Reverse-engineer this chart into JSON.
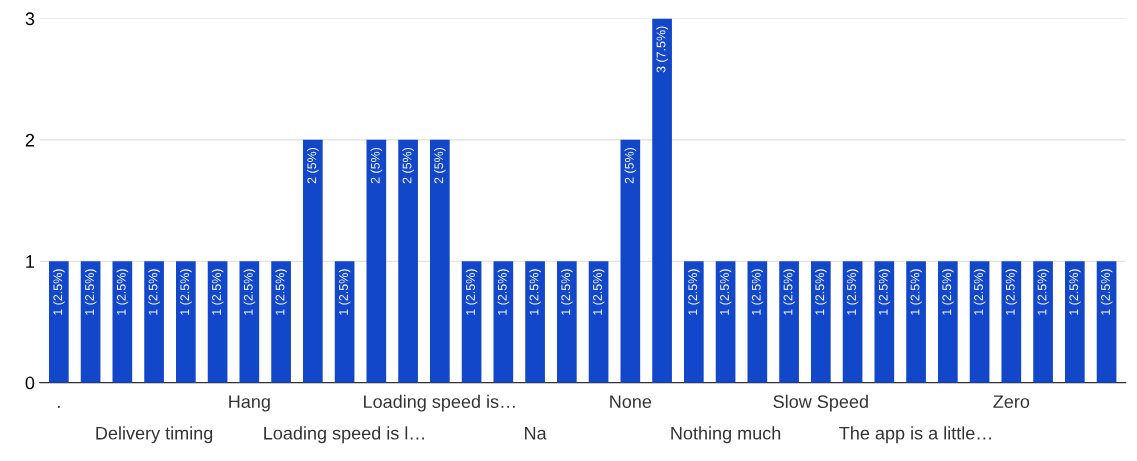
{
  "chart_data": {
    "type": "bar",
    "categories": [
      ".",
      null,
      null,
      "Delivery timing",
      null,
      null,
      "Hang",
      null,
      null,
      "Loading speed is l…",
      null,
      null,
      "Loading speed is…",
      null,
      null,
      "Na",
      null,
      null,
      "None",
      null,
      null,
      "Nothing much",
      null,
      null,
      "Slow Speed",
      null,
      null,
      "The app is a little…",
      null,
      null,
      "Zero",
      null,
      null,
      null
    ],
    "values": [
      1,
      1,
      1,
      1,
      1,
      1,
      1,
      1,
      2,
      1,
      2,
      2,
      2,
      1,
      1,
      1,
      1,
      1,
      2,
      3,
      1,
      1,
      1,
      1,
      1,
      1,
      1,
      1,
      1,
      1,
      1,
      1,
      1,
      1
    ],
    "value_labels": [
      "1 (2.5%)",
      "1 (2.5%)",
      "1 (2.5%)",
      "1 (2.5%)",
      "1 (2.5%)",
      "1 (2.5%)",
      "1 (2.5%)",
      "1 (2.5%)",
      "2 (5%)",
      "1 (2.5%)",
      "2 (5%)",
      "2 (5%)",
      "2 (5%)",
      "1 (2.5%)",
      "1 (2.5%)",
      "1 (2.5%)",
      "1 (2.5%)",
      "1 (2.5%)",
      "2 (5%)",
      "3 (7.5%)",
      "1 (2.5%)",
      "1 (2.5%)",
      "1 (2.5%)",
      "1 (2.5%)",
      "1 (2.5%)",
      "1 (2.5%)",
      "1 (2.5%)",
      "1 (2.5%)",
      "1 (2.5%)",
      "1 (2.5%)",
      "1 (2.5%)",
      "1 (2.5%)",
      "1 (2.5%)",
      "1 (2.5%)"
    ],
    "color": "#1147c8",
    "ylim": [
      0,
      3
    ],
    "yticks": [
      0,
      1,
      2,
      3
    ],
    "grid": "y",
    "legend": false
  }
}
